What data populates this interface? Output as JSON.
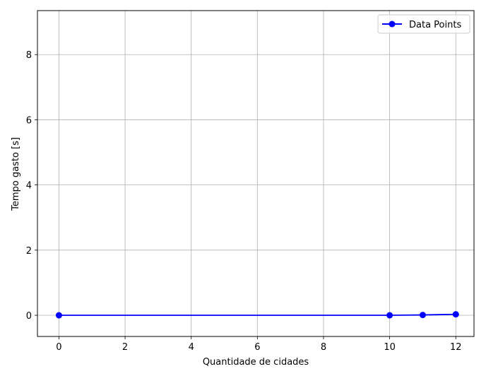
{
  "chart_data": {
    "type": "line",
    "title": "",
    "xlabel": "Quantidade de cidades",
    "ylabel": "Tempo gasto [s]",
    "xlim": [
      -0.65,
      12.55
    ],
    "ylim": [
      -0.65,
      9.35
    ],
    "xticks": [
      0,
      2,
      4,
      6,
      8,
      10,
      12
    ],
    "yticks": [
      0,
      2,
      4,
      6,
      8
    ],
    "grid": true,
    "legend_position": "upper right",
    "series": [
      {
        "name": "Data Points",
        "color": "#0000ff",
        "marker": "circle",
        "x": [
          0,
          10,
          11,
          12
        ],
        "y": [
          0.0,
          0.0,
          0.01,
          0.03
        ]
      }
    ]
  }
}
